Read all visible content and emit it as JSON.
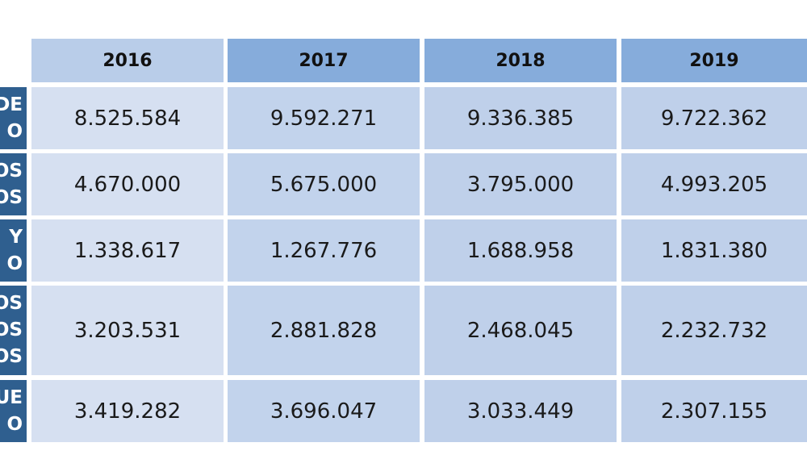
{
  "table": {
    "years": [
      "2016",
      "2017",
      "2018",
      "2019"
    ],
    "row_label_fragments": [
      [
        "DE",
        "O"
      ],
      [
        "OS",
        "OS"
      ],
      [
        "Y",
        "O"
      ],
      [
        "OS",
        "OS",
        "OS"
      ],
      [
        "UE",
        "O"
      ]
    ],
    "rows": [
      [
        "8.525.584",
        "9.592.271",
        "9.336.385",
        "9.722.362"
      ],
      [
        "4.670.000",
        "5.675.000",
        "3.795.000",
        "4.993.205"
      ],
      [
        "1.338.617",
        "1.267.776",
        "1.688.958",
        "1.831.380"
      ],
      [
        "3.203.531",
        "2.881.828",
        "2.468.045",
        "2.232.732"
      ],
      [
        "3.419.282",
        "3.696.047",
        "3.033.449",
        "2.307.155"
      ]
    ]
  },
  "colors": {
    "header_light": "#b9cde9",
    "header_dark": "#86acdb",
    "row_label_bg": "#2f5f8f",
    "cell_first_col": "#d6e0f1",
    "cell_other_cols": "#c0d1eb"
  }
}
